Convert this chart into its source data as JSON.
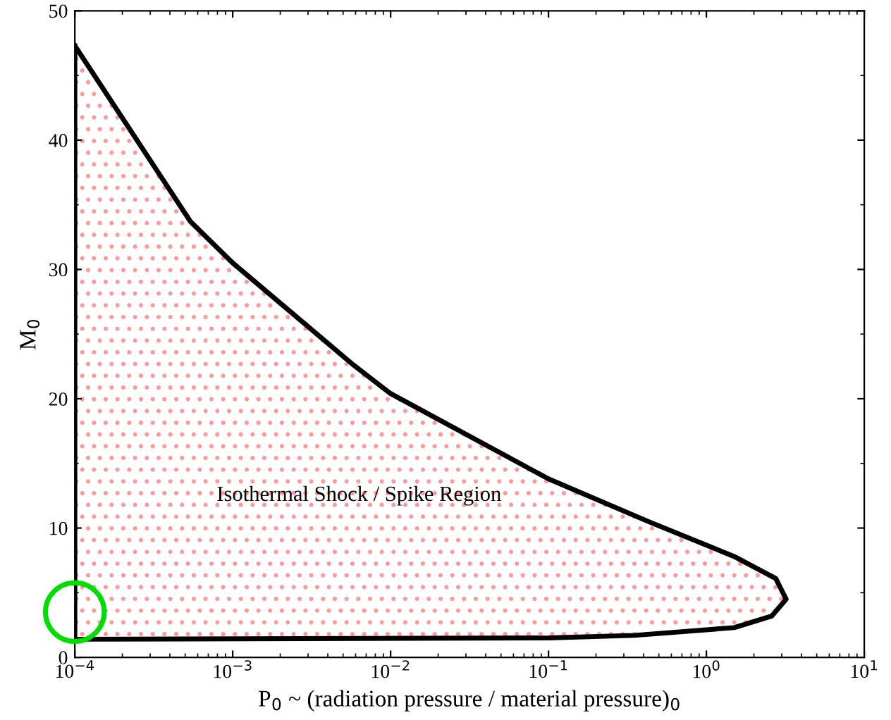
{
  "chart_data": {
    "type": "area",
    "xlabel": "P$_{0}$ ~ (radiation pressure / material pressure)$_{0}$",
    "ylabel": "M$_{0}$",
    "log": "x",
    "xlim": [
      0.0001,
      10
    ],
    "ylim": [
      0,
      50
    ],
    "xticks": [
      {
        "value": 0.0001,
        "label": "10$^{−4}$"
      },
      {
        "value": 0.001,
        "label": "10$^{−3}$"
      },
      {
        "value": 0.01,
        "label": "10$^{−2}$"
      },
      {
        "value": 0.1,
        "label": "10$^{−1}$"
      },
      {
        "value": 1,
        "label": "10$^{0}$"
      },
      {
        "value": 10,
        "label": "10$^{1}$"
      }
    ],
    "yticks": [
      0,
      10,
      20,
      30,
      40,
      50
    ],
    "grid": false,
    "legend": false,
    "series": [
      {
        "color": "#000000",
        "x": [
          0.0001,
          0.00054,
          0.001,
          0.0057,
          0.01,
          0.1,
          0.43,
          1.5,
          2.75,
          3.2,
          2.6,
          1.5,
          0.35,
          0.1,
          0.0001
        ],
        "values": [
          47.3,
          33.7,
          30.5,
          22.7,
          20.4,
          13.8,
          10.5,
          7.8,
          6.1,
          4.5,
          3.2,
          2.3,
          1.7,
          1.5,
          1.4
        ]
      },
      {
        "type": "scatter",
        "color": "#00dd00",
        "marker": "circle",
        "x": [
          0.0001
        ],
        "values": [
          3.5
        ]
      }
    ],
    "annotations": [
      "Isothermal Shock / Spike Region"
    ]
  }
}
